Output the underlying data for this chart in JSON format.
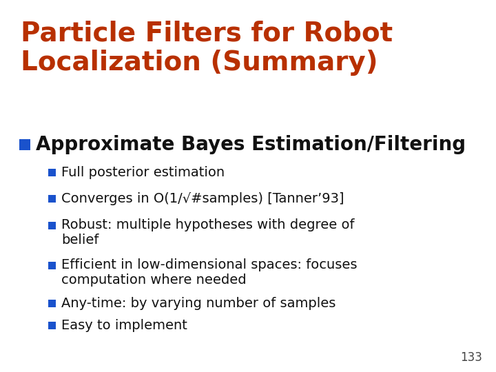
{
  "title_line1": "Particle Filters for Robot",
  "title_line2": "Localization (Summary)",
  "title_color": "#b83000",
  "background_color": "#ffffff",
  "main_bullet": "Approximate Bayes Estimation/Filtering",
  "text_color": "#111111",
  "slide_number": "133",
  "bullet_square_color": "#1a52cc",
  "title_fontsize": 28,
  "main_fontsize": 20,
  "sub_fontsize": 14,
  "pagenumber_fontsize": 12,
  "sub_bullets": [
    "Full posterior estimation",
    "Converges in O(1/√#samples) [Tanner’93]",
    "Robust: multiple hypotheses with degree of\nbelief",
    "Efficient in low-dimensional spaces: focuses\ncomputation where needed",
    "Any-time: by varying number of samples",
    "Easy to implement"
  ],
  "sub_multiline": [
    false,
    false,
    true,
    true,
    false,
    false
  ]
}
